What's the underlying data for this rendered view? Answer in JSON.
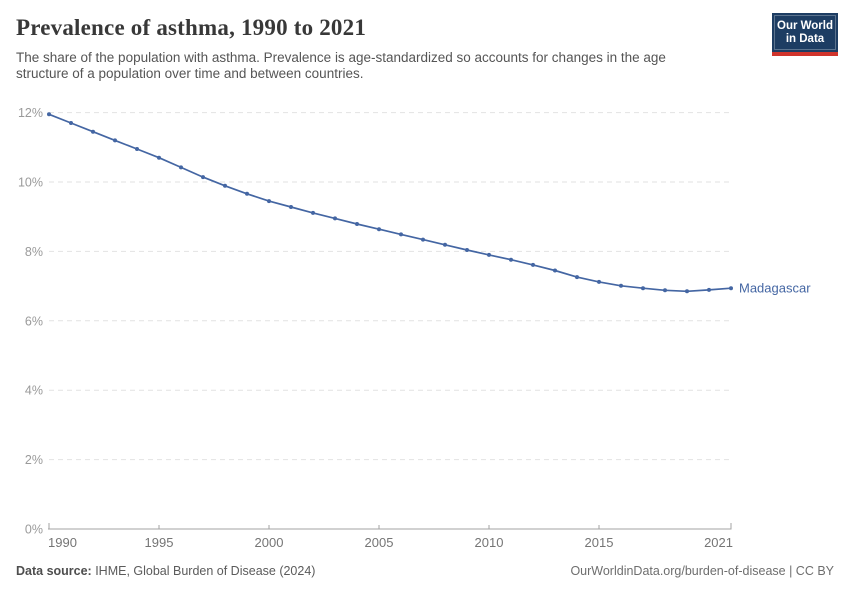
{
  "header": {
    "title": "Prevalence of asthma, 1990 to 2021",
    "subtitle_lines": [
      "The share of the population with asthma. Prevalence is age-standardized so accounts for changes in the age",
      "structure of a population over time and between countries."
    ]
  },
  "logo": {
    "line1": "Our World",
    "line2": "in Data"
  },
  "chart_data": {
    "type": "line",
    "title": "Prevalence of asthma, 1990 to 2021",
    "x": [
      1990,
      1991,
      1992,
      1993,
      1994,
      1995,
      1996,
      1997,
      1998,
      1999,
      2000,
      2001,
      2002,
      2003,
      2004,
      2005,
      2006,
      2007,
      2008,
      2009,
      2010,
      2011,
      2012,
      2013,
      2014,
      2015,
      2016,
      2017,
      2018,
      2019,
      2020,
      2021
    ],
    "series": [
      {
        "name": "Madagascar",
        "values": [
          11.95,
          11.7,
          11.45,
          11.2,
          10.95,
          10.7,
          10.42,
          10.14,
          9.89,
          9.66,
          9.45,
          9.28,
          9.11,
          8.95,
          8.79,
          8.64,
          8.49,
          8.34,
          8.19,
          8.04,
          7.9,
          7.76,
          7.61,
          7.45,
          7.26,
          7.12,
          7.01,
          6.94,
          6.88,
          6.85,
          6.89,
          6.94
        ]
      }
    ],
    "xlabel": "",
    "ylabel": "",
    "ylim": [
      0,
      12
    ],
    "yticks": [
      0,
      2,
      4,
      6,
      8,
      10,
      12
    ],
    "ytick_suffix": "%",
    "xticks": [
      1990,
      1995,
      2000,
      2005,
      2010,
      2015,
      2021
    ],
    "grid": "horizontal-dashed",
    "legend_position": "end-of-line-label"
  },
  "footer": {
    "datasource_label": "Data source:",
    "datasource_value": " IHME, Global Burden of Disease (2024)",
    "credit": "OurWorldinData.org/burden-of-disease | CC BY"
  },
  "colors": {
    "line": "#4466a3",
    "grid": "#e2e2e2",
    "axis": "#a3a3a3",
    "ytick_label": "#9a9a9a",
    "xtick_label": "#757575",
    "logo_bg": "#1d3d63",
    "logo_red": "#d0342c"
  }
}
